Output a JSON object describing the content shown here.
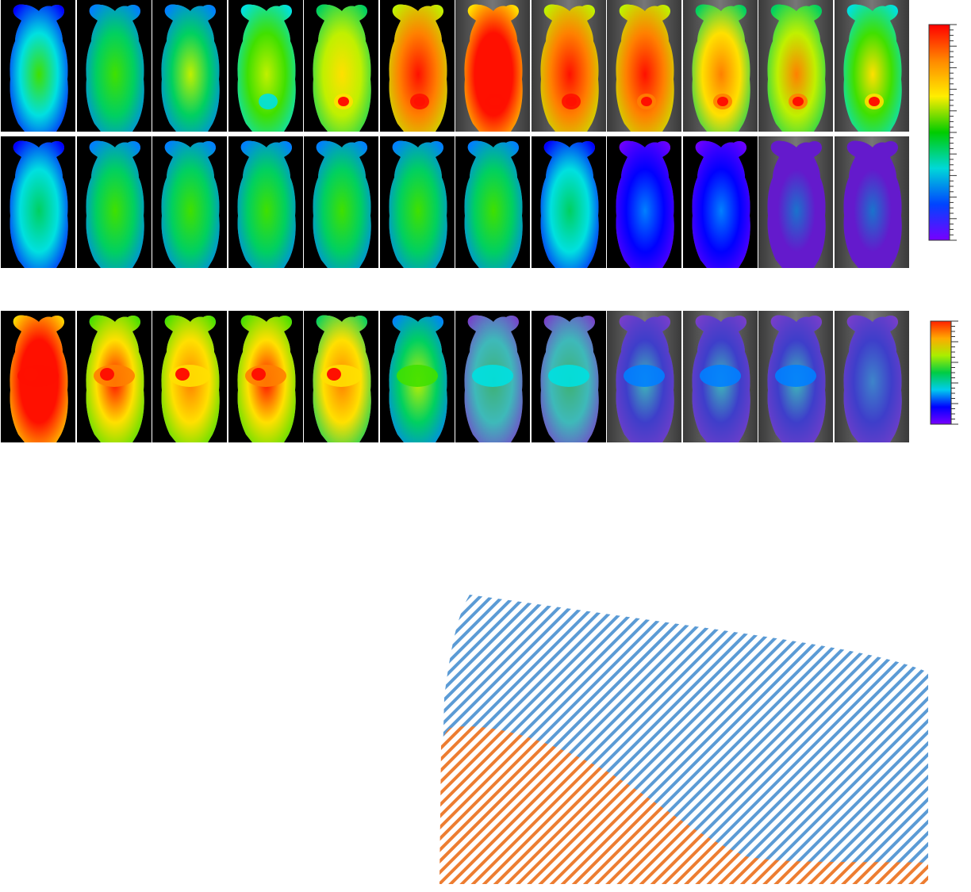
{
  "figure": {
    "rows": [
      {
        "id": "row1",
        "count": 12,
        "colormap": "rainbow",
        "intensity": [
          0.35,
          0.4,
          0.45,
          0.5,
          0.62,
          0.85,
          0.95,
          0.88,
          0.82,
          0.7,
          0.65,
          0.55
        ],
        "hotspot": [
          0.05,
          0.1,
          0.2,
          0.35,
          0.75,
          1.0,
          1.0,
          0.95,
          0.9,
          0.85,
          0.85,
          0.75
        ]
      },
      {
        "id": "row2",
        "count": 12,
        "colormap": "rainbow",
        "intensity": [
          0.32,
          0.42,
          0.42,
          0.44,
          0.44,
          0.4,
          0.4,
          0.32,
          0.14,
          0.1,
          0.06,
          0.06
        ],
        "hotspot": [
          0,
          0,
          0,
          0,
          0,
          0,
          0,
          0,
          0,
          0,
          0,
          0
        ]
      },
      {
        "id": "row3",
        "count": 12,
        "colormap": "rainbow",
        "intensity": [
          0.95,
          0.78,
          0.74,
          0.78,
          0.7,
          0.45,
          0.3,
          0.3,
          0.18,
          0.16,
          0.15,
          0.12
        ],
        "hotspot": [
          1.0,
          0.85,
          0.8,
          0.85,
          0.8,
          0.55,
          0.35,
          0.35,
          0.25,
          0.25,
          0.22,
          0.18
        ]
      }
    ],
    "colorbars": [
      {
        "id": "colorbar-top",
        "colors": [
          "#ff0000",
          "#ff8800",
          "#ffee00",
          "#00cc00",
          "#00d8d8",
          "#0044ff",
          "#7700ff"
        ]
      },
      {
        "id": "colorbar-bottom",
        "colors": [
          "#ff2200",
          "#ffaa00",
          "#aaee00",
          "#00cc44",
          "#00ccee",
          "#0000ff",
          "#7700ff"
        ]
      }
    ]
  },
  "stacked_area": {
    "series": [
      {
        "color": "#5b9bd5",
        "pattern": "hatch"
      },
      {
        "color": "#ed7d31",
        "pattern": "hatch"
      }
    ]
  }
}
